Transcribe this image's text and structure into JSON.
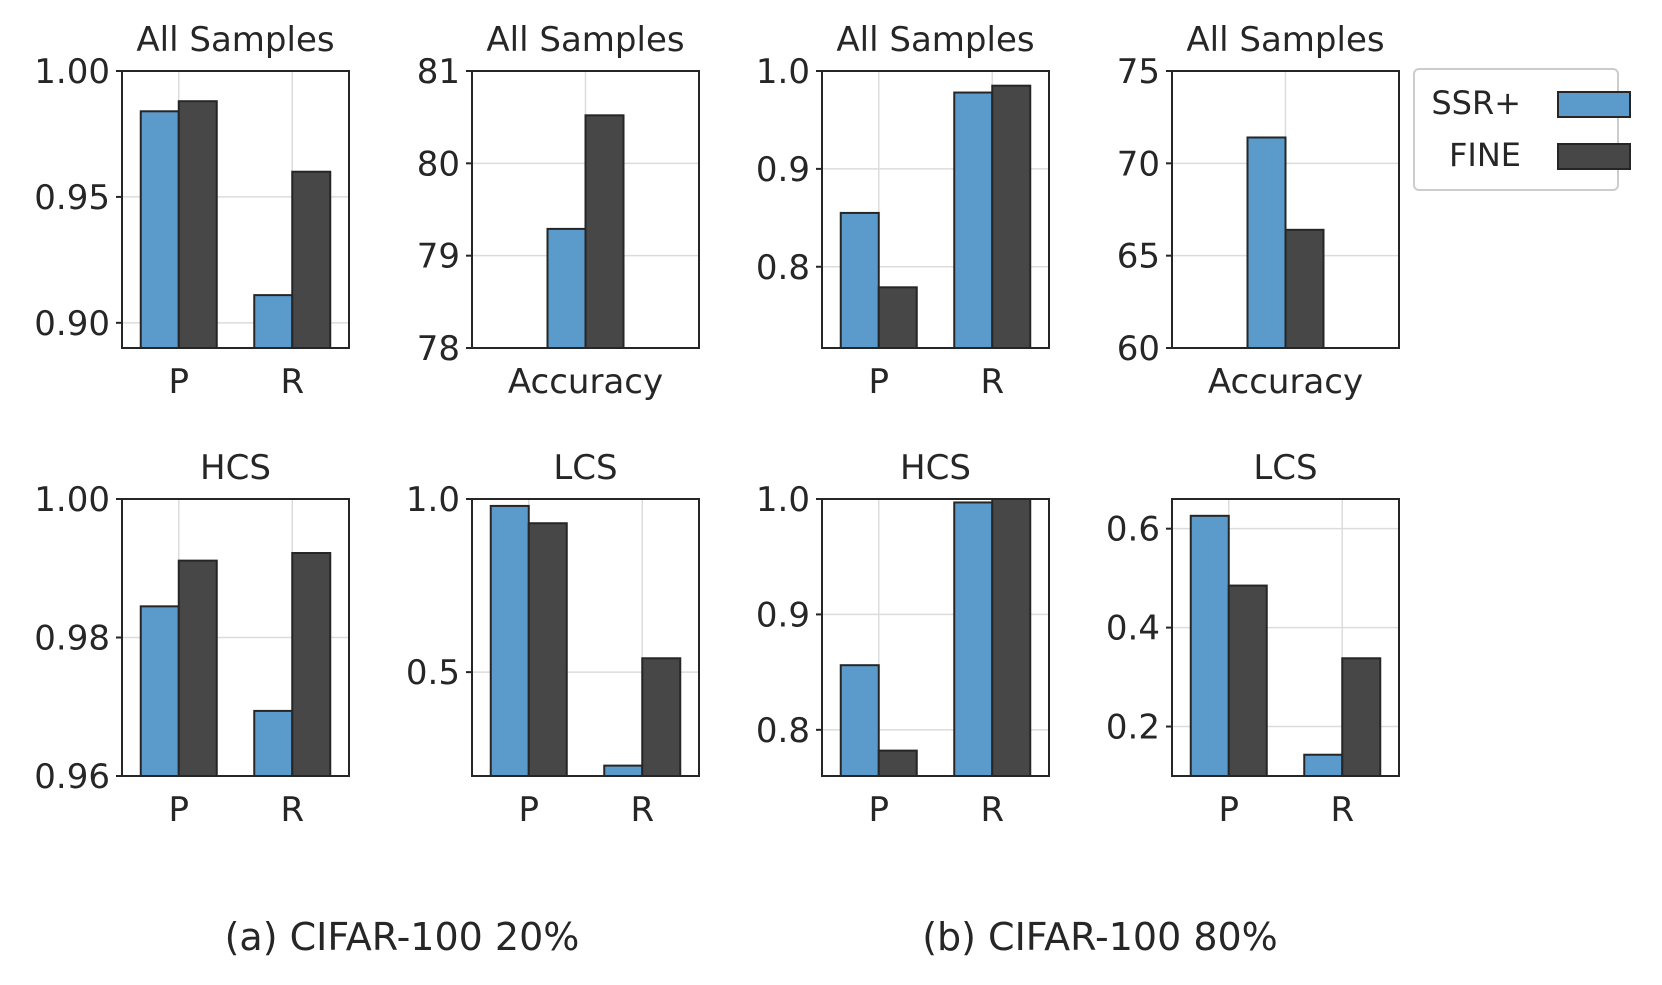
{
  "legend": {
    "entries": [
      {
        "label": "SSR+",
        "color": "#5b9bcb"
      },
      {
        "label": "FINE",
        "color": "#474747"
      }
    ]
  },
  "captions": {
    "a": "(a) CIFAR-100 20%",
    "b": "(b) CIFAR-100 80%"
  },
  "colors": {
    "ssr": "#5b9bcb",
    "fine": "#474747",
    "grid": "#dcdcdc",
    "axis": "#262626"
  },
  "chart_data": [
    {
      "type": "bar",
      "title": "All Samples",
      "categories": [
        "P",
        "R"
      ],
      "series": [
        {
          "name": "SSR+",
          "values": [
            0.984,
            0.911
          ]
        },
        {
          "name": "FINE",
          "values": [
            0.988,
            0.96
          ]
        }
      ],
      "ylim": [
        0.89,
        1.0
      ],
      "yticks": [
        0.9,
        0.95,
        1.0
      ],
      "yticklabels": [
        "0.90",
        "0.95",
        "1.00"
      ],
      "grid": true
    },
    {
      "type": "bar",
      "title": "All Samples",
      "categories": [
        "Accuracy"
      ],
      "series": [
        {
          "name": "SSR+",
          "values": [
            79.29
          ]
        },
        {
          "name": "FINE",
          "values": [
            80.52
          ]
        }
      ],
      "ylim": [
        78,
        81
      ],
      "yticks": [
        78,
        79,
        80,
        81
      ],
      "yticklabels": [
        "78",
        "79",
        "80",
        "81"
      ],
      "grid": true
    },
    {
      "type": "bar",
      "title": "All Samples",
      "categories": [
        "P",
        "R"
      ],
      "series": [
        {
          "name": "SSR+",
          "values": [
            0.855,
            0.978
          ]
        },
        {
          "name": "FINE",
          "values": [
            0.779,
            0.985
          ]
        }
      ],
      "ylim": [
        0.717,
        1.0
      ],
      "yticks": [
        0.8,
        0.9,
        1.0
      ],
      "yticklabels": [
        "0.8",
        "0.9",
        "1.0"
      ],
      "grid": true
    },
    {
      "type": "bar",
      "title": "All Samples",
      "categories": [
        "Accuracy"
      ],
      "series": [
        {
          "name": "SSR+",
          "values": [
            71.4
          ]
        },
        {
          "name": "FINE",
          "values": [
            66.4
          ]
        }
      ],
      "ylim": [
        60,
        75
      ],
      "yticks": [
        60,
        65,
        70,
        75
      ],
      "yticklabels": [
        "60",
        "65",
        "70",
        "75"
      ],
      "grid": true
    },
    {
      "type": "bar",
      "title": "HCS",
      "categories": [
        "P",
        "R"
      ],
      "series": [
        {
          "name": "SSR+",
          "values": [
            0.9845,
            0.9694
          ]
        },
        {
          "name": "FINE",
          "values": [
            0.9911,
            0.9922
          ]
        }
      ],
      "ylim": [
        0.96,
        1.0
      ],
      "yticks": [
        0.96,
        0.98,
        1.0
      ],
      "yticklabels": [
        "0.96",
        "0.98",
        "1.00"
      ],
      "grid": true
    },
    {
      "type": "bar",
      "title": "LCS",
      "categories": [
        "P",
        "R"
      ],
      "series": [
        {
          "name": "SSR+",
          "values": [
            0.98,
            0.23
          ]
        },
        {
          "name": "FINE",
          "values": [
            0.93,
            0.54
          ]
        }
      ],
      "ylim": [
        0.2,
        1.0
      ],
      "yticks": [
        0.5,
        1.0
      ],
      "yticklabels": [
        "0.5",
        "1.0"
      ],
      "grid": true
    },
    {
      "type": "bar",
      "title": "HCS",
      "categories": [
        "P",
        "R"
      ],
      "series": [
        {
          "name": "SSR+",
          "values": [
            0.856,
            0.997
          ]
        },
        {
          "name": "FINE",
          "values": [
            0.782,
            1.0
          ]
        }
      ],
      "ylim": [
        0.76,
        1.0
      ],
      "yticks": [
        0.8,
        0.9,
        1.0
      ],
      "yticklabels": [
        "0.8",
        "0.9",
        "1.0"
      ],
      "grid": true
    },
    {
      "type": "bar",
      "title": "LCS",
      "categories": [
        "P",
        "R"
      ],
      "series": [
        {
          "name": "SSR+",
          "values": [
            0.626,
            0.143
          ]
        },
        {
          "name": "FINE",
          "values": [
            0.485,
            0.338
          ]
        }
      ],
      "ylim": [
        0.1,
        0.66
      ],
      "yticks": [
        0.2,
        0.4,
        0.6
      ],
      "yticklabels": [
        "0.2",
        "0.4",
        "0.6"
      ],
      "grid": true
    }
  ]
}
